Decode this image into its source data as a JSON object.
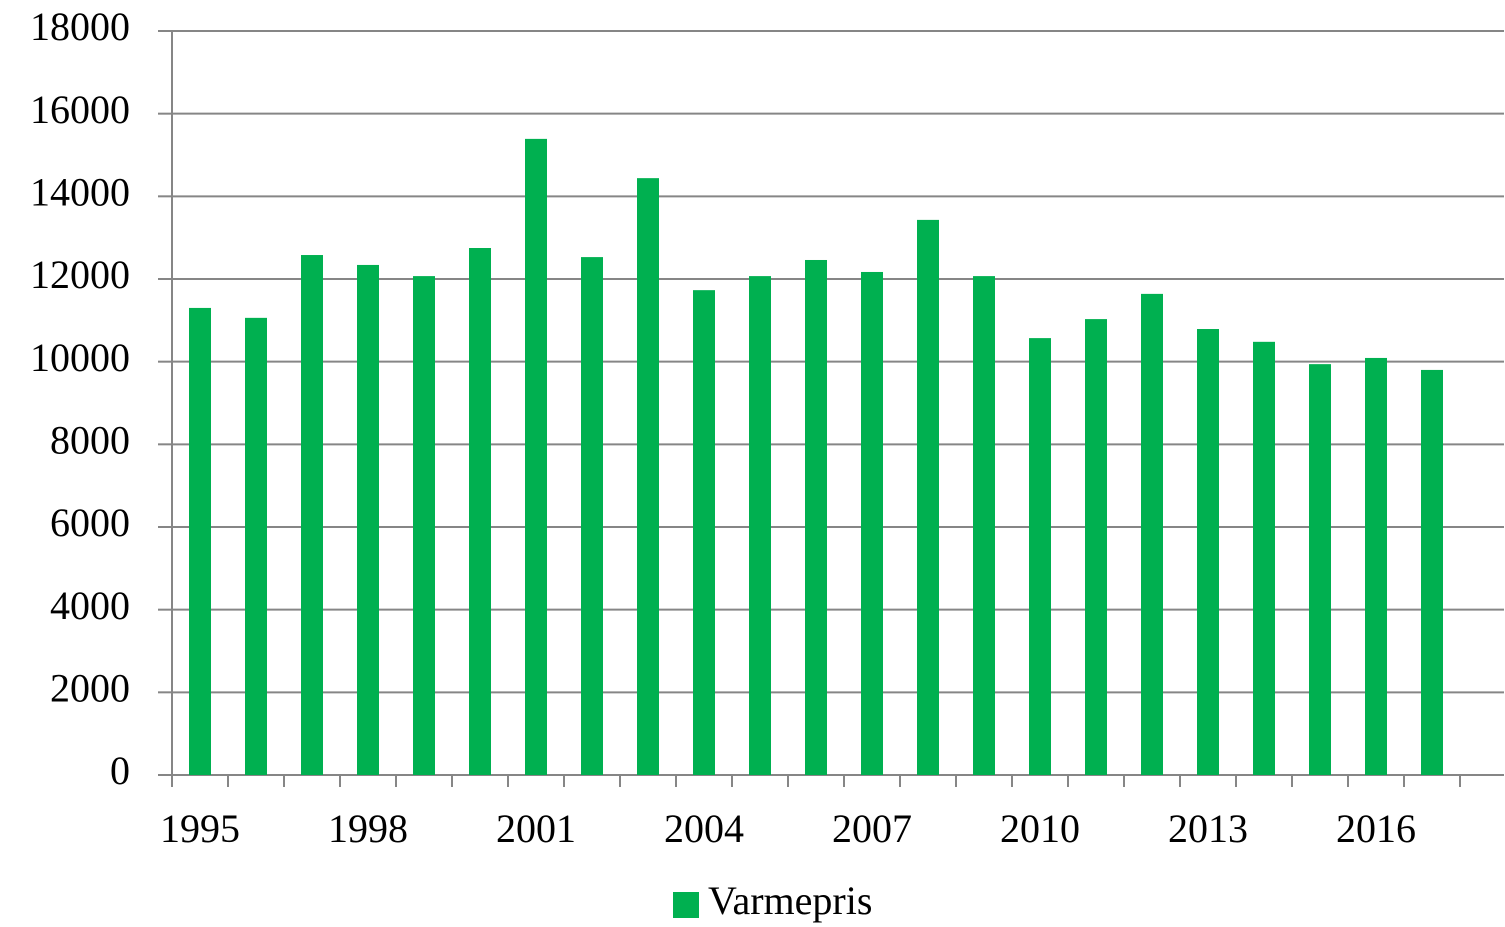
{
  "chart_data": {
    "type": "bar",
    "categories": [
      "1995",
      null,
      null,
      "1998",
      null,
      null,
      "2001",
      null,
      null,
      "2004",
      null,
      null,
      "2007",
      null,
      null,
      "2010",
      null,
      null,
      "2013",
      null,
      null,
      "2016",
      null
    ],
    "series": [
      {
        "name": "Varmepris",
        "color": "#00b050",
        "values": [
          11300,
          11060,
          12580,
          12340,
          12070,
          12750,
          15390,
          12530,
          14440,
          11730,
          12070,
          12460,
          12170,
          13430,
          12070,
          10570,
          11030,
          11640,
          10790,
          10480,
          9940,
          10090,
          9800
        ]
      }
    ],
    "ylim": [
      0,
      18000
    ],
    "yticks": [
      0,
      2000,
      4000,
      6000,
      8000,
      10000,
      12000,
      14000,
      16000,
      18000
    ],
    "grid": true,
    "legend": "bottom"
  }
}
